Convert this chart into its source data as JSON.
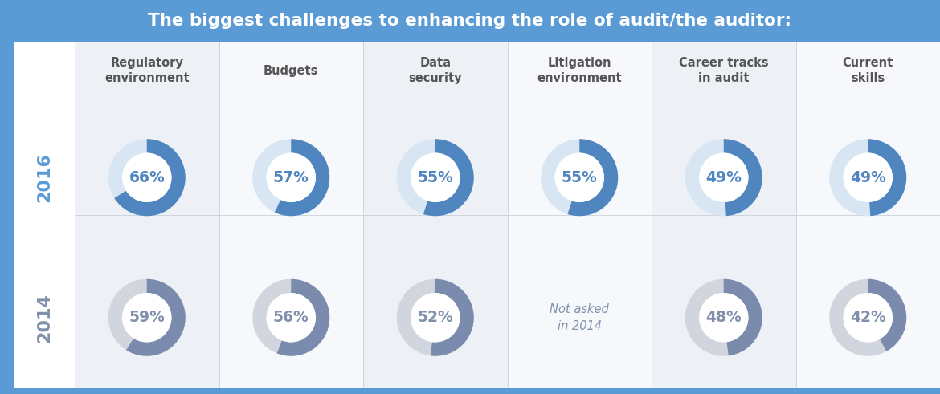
{
  "title": "The biggest challenges to enhancing the role of audit/the auditor:",
  "title_bg": "#5b9bd5",
  "title_color": "#ffffff",
  "categories": [
    "Regulatory\nenvironment",
    "Budgets",
    "Data\nsecurity",
    "Litigation\nenvironment",
    "Career tracks\nin audit",
    "Current\nskills"
  ],
  "values_2016": [
    66,
    57,
    55,
    55,
    49,
    49
  ],
  "values_2014": [
    59,
    56,
    52,
    null,
    48,
    42
  ],
  "color_2016": "#4f86c0",
  "color_2016_bg": "#d8e6f3",
  "color_2014": "#7a8bad",
  "color_2014_bg": "#d0d5de",
  "color_label_2016": "#4f86c0",
  "color_label_2014": "#8090aa",
  "not_asked_text": "Not asked\nin 2014",
  "year_2016": "2016",
  "year_2014": "2014",
  "col_bg_even": "#edf0f5",
  "col_bg_odd": "#f7f8fb",
  "left_bar_color": "#5b9bd5",
  "left_content_bg": "#ffffff",
  "bottom_border_color": "#5b9bd5",
  "main_bg": "#f0f3f7",
  "cat_label_color": "#555555"
}
